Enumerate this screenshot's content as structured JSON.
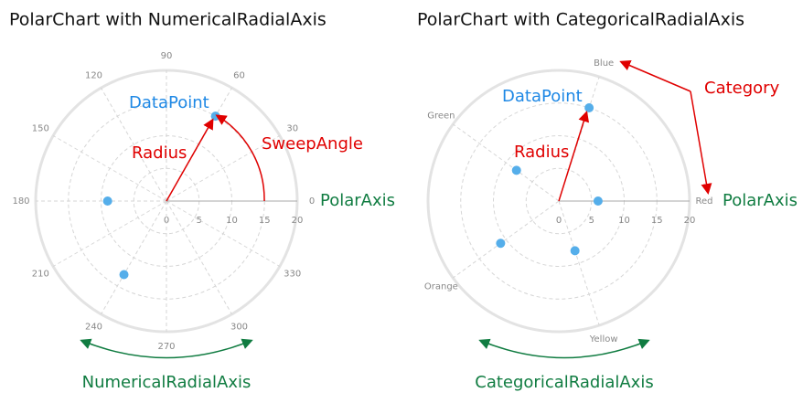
{
  "chart_data": [
    {
      "type": "polar",
      "title": "PolarChart with NumericalRadialAxis",
      "r": [
        15,
        9,
        13
      ],
      "theta": [
        60,
        180,
        240
      ],
      "color": "#55aeea",
      "rlim": [
        0,
        20
      ],
      "rticks": [
        0,
        5,
        10,
        15,
        20
      ],
      "thetaticks": [
        0,
        30,
        60,
        90,
        120,
        150,
        180,
        210,
        240,
        270,
        300,
        330
      ],
      "annotations": [
        "DataPoint",
        "Radius",
        "SweepAngle",
        "PolarAxis",
        "NumericalRadialAxis"
      ]
    },
    {
      "type": "polar-categorical",
      "title": "PolarChart with CategoricalRadialAxis",
      "categories": [
        "Red",
        "Blue",
        "Green",
        "Orange",
        "Yellow"
      ],
      "values": [
        6,
        15,
        8,
        11,
        8
      ],
      "color": "#55aeea",
      "rlim": [
        0,
        20
      ],
      "rticks": [
        0,
        5,
        10,
        15,
        20
      ],
      "annotations": [
        "DataPoint",
        "Radius",
        "Category",
        "PolarAxis",
        "CategoricalRadialAxis"
      ]
    }
  ]
}
